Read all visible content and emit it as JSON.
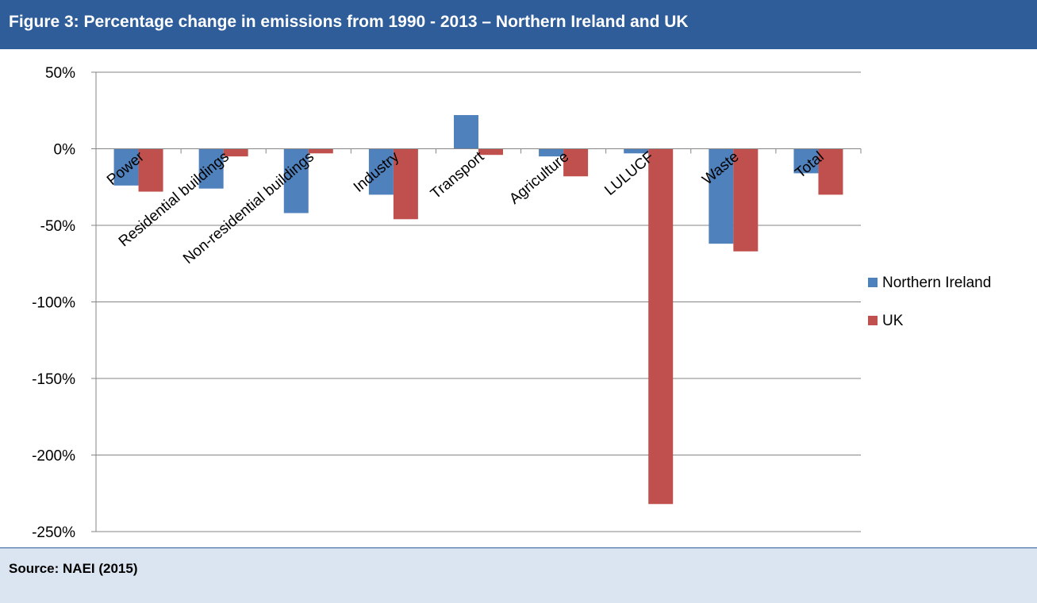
{
  "title": "Figure 3: Percentage change in emissions from 1990 - 2013 – Northern Ireland and UK",
  "source": "Source: NAEI (2015)",
  "colors": {
    "title_bg": "#2e5d9a",
    "source_bg": "#dbe5f1",
    "northern_ireland": "#4f81bd",
    "uk": "#c0504d",
    "grid": "#868686"
  },
  "chart_data": {
    "type": "bar",
    "categories": [
      "Power",
      "Residential buildings",
      "Non-residential buildings",
      "Industry",
      "Transport",
      "Agriculture",
      "LULUCF",
      "Waste",
      "Total"
    ],
    "series": [
      {
        "name": "Northern Ireland",
        "values": [
          -24,
          -26,
          -42,
          -30,
          22,
          -5,
          -3,
          -62,
          -16
        ]
      },
      {
        "name": "UK",
        "values": [
          -28,
          -5,
          -3,
          -46,
          -4,
          -18,
          -232,
          -67,
          -30
        ]
      }
    ],
    "yticks": [
      "50%",
      "0%",
      "-50%",
      "-100%",
      "-150%",
      "-200%",
      "-250%"
    ],
    "ylim": [
      -250,
      50
    ],
    "grid": true,
    "legend_position": "right",
    "xlabel": "",
    "ylabel": ""
  }
}
